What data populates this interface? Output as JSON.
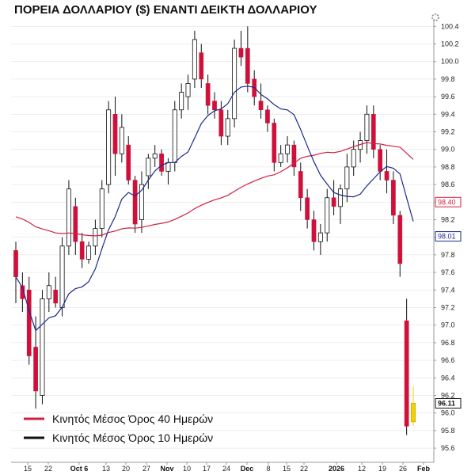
{
  "title": "ΠΟΡΕΙΑ ΔΟΛΛΑΡΙΟΥ ($) ΕΝΑΝΤΙ ΔΕΙΚΤΗ ΔΟΛΛΑΡΙΟΥ",
  "colors": {
    "down_candle": "#d0103a",
    "up_candle": "#ffffff",
    "ma40": "#d02040",
    "ma10": "#1a2a8a",
    "grid": "#dddddd",
    "highlight": "#f2d200"
  },
  "chart_data": {
    "type": "candlestick",
    "ylim": [
      95.5,
      100.5
    ],
    "y_ticks": [
      "95.6",
      "95.8",
      "96.0",
      "96.2",
      "96.4",
      "96.6",
      "96.8",
      "97.0",
      "97.2",
      "97.4",
      "97.6",
      "97.8",
      "98.0",
      "98.2",
      "98.4",
      "98.6",
      "98.8",
      "99.0",
      "99.2",
      "99.4",
      "99.6",
      "99.8",
      "100.0",
      "100.2",
      "100.4"
    ],
    "x_ticks": [
      {
        "label": "15",
        "bold": false
      },
      {
        "label": "22",
        "bold": false
      },
      {
        "label": "Oct 6",
        "bold": true
      },
      {
        "label": "13",
        "bold": false
      },
      {
        "label": "20",
        "bold": false
      },
      {
        "label": "27",
        "bold": false
      },
      {
        "label": "Nov",
        "bold": true
      },
      {
        "label": "10",
        "bold": false
      },
      {
        "label": "17",
        "bold": false
      },
      {
        "label": "24",
        "bold": false
      },
      {
        "label": "Dec",
        "bold": true
      },
      {
        "label": "8",
        "bold": false
      },
      {
        "label": "15",
        "bold": false
      },
      {
        "label": "22",
        "bold": false
      },
      {
        "label": "2026",
        "bold": true
      },
      {
        "label": "12",
        "bold": false
      },
      {
        "label": "19",
        "bold": false
      },
      {
        "label": "26",
        "bold": false
      },
      {
        "label": "Feb",
        "bold": true
      }
    ],
    "legend": [
      {
        "name": "Κινητός Μέσος Όρος 40 Ημερών",
        "color": "#d02040"
      },
      {
        "name": "Κινητός Μέσος Όρος 10 Ημερών",
        "color": "#111111"
      }
    ],
    "last_values": [
      {
        "value": "98.40",
        "color": "#d02040"
      },
      {
        "value": "98.01",
        "color": "#1a2a8a"
      },
      {
        "value": "96.11",
        "color": "#111111"
      }
    ],
    "candles": [
      {
        "o": 97.85,
        "h": 97.95,
        "l": 97.25,
        "c": 97.55
      },
      {
        "o": 97.45,
        "h": 97.6,
        "l": 97.15,
        "c": 97.3
      },
      {
        "o": 97.4,
        "h": 97.55,
        "l": 96.55,
        "c": 96.65
      },
      {
        "o": 96.75,
        "h": 97.1,
        "l": 96.05,
        "c": 96.25
      },
      {
        "o": 96.2,
        "h": 97.4,
        "l": 96.1,
        "c": 97.3
      },
      {
        "o": 97.3,
        "h": 97.6,
        "l": 97.15,
        "c": 97.45
      },
      {
        "o": 97.4,
        "h": 97.55,
        "l": 97.2,
        "c": 97.25
      },
      {
        "o": 97.2,
        "h": 98.0,
        "l": 97.1,
        "c": 97.9
      },
      {
        "o": 97.9,
        "h": 98.65,
        "l": 97.8,
        "c": 98.55
      },
      {
        "o": 98.35,
        "h": 98.45,
        "l": 97.8,
        "c": 97.95
      },
      {
        "o": 97.95,
        "h": 98.05,
        "l": 97.65,
        "c": 97.75
      },
      {
        "o": 97.75,
        "h": 97.95,
        "l": 97.7,
        "c": 97.9
      },
      {
        "o": 97.9,
        "h": 98.2,
        "l": 97.8,
        "c": 98.1
      },
      {
        "o": 98.1,
        "h": 98.65,
        "l": 98.0,
        "c": 98.55
      },
      {
        "o": 98.6,
        "h": 99.55,
        "l": 98.5,
        "c": 99.45
      },
      {
        "o": 99.4,
        "h": 99.6,
        "l": 98.7,
        "c": 98.95
      },
      {
        "o": 98.95,
        "h": 99.4,
        "l": 98.85,
        "c": 99.25
      },
      {
        "o": 99.05,
        "h": 99.15,
        "l": 98.6,
        "c": 98.65
      },
      {
        "o": 98.65,
        "h": 98.7,
        "l": 98.05,
        "c": 98.15
      },
      {
        "o": 98.2,
        "h": 98.75,
        "l": 98.05,
        "c": 98.6
      },
      {
        "o": 98.7,
        "h": 98.95,
        "l": 98.55,
        "c": 98.9
      },
      {
        "o": 98.9,
        "h": 99.05,
        "l": 98.8,
        "c": 98.95
      },
      {
        "o": 98.95,
        "h": 99.0,
        "l": 98.7,
        "c": 98.75
      },
      {
        "o": 98.75,
        "h": 98.9,
        "l": 98.6,
        "c": 98.85
      },
      {
        "o": 98.85,
        "h": 99.55,
        "l": 98.75,
        "c": 99.45
      },
      {
        "o": 99.45,
        "h": 99.75,
        "l": 99.35,
        "c": 99.65
      },
      {
        "o": 99.6,
        "h": 99.85,
        "l": 99.45,
        "c": 99.75
      },
      {
        "o": 99.8,
        "h": 100.35,
        "l": 99.7,
        "c": 100.25
      },
      {
        "o": 100.1,
        "h": 100.2,
        "l": 99.7,
        "c": 99.8
      },
      {
        "o": 99.75,
        "h": 99.85,
        "l": 99.4,
        "c": 99.5
      },
      {
        "o": 99.55,
        "h": 99.65,
        "l": 99.35,
        "c": 99.45
      },
      {
        "o": 99.45,
        "h": 99.55,
        "l": 99.05,
        "c": 99.15
      },
      {
        "o": 99.15,
        "h": 99.45,
        "l": 99.05,
        "c": 99.35
      },
      {
        "o": 99.35,
        "h": 100.25,
        "l": 99.25,
        "c": 100.15
      },
      {
        "o": 100.15,
        "h": 100.35,
        "l": 99.95,
        "c": 100.05
      },
      {
        "o": 100.15,
        "h": 100.4,
        "l": 99.65,
        "c": 99.75
      },
      {
        "o": 99.8,
        "h": 99.9,
        "l": 99.5,
        "c": 99.6
      },
      {
        "o": 99.55,
        "h": 99.75,
        "l": 99.35,
        "c": 99.45
      },
      {
        "o": 99.45,
        "h": 99.5,
        "l": 99.2,
        "c": 99.3
      },
      {
        "o": 99.3,
        "h": 99.35,
        "l": 98.75,
        "c": 98.85
      },
      {
        "o": 98.85,
        "h": 99.05,
        "l": 98.8,
        "c": 98.95
      },
      {
        "o": 98.95,
        "h": 99.15,
        "l": 98.85,
        "c": 99.05
      },
      {
        "o": 99.05,
        "h": 99.1,
        "l": 98.7,
        "c": 98.8
      },
      {
        "o": 98.75,
        "h": 98.85,
        "l": 98.3,
        "c": 98.45
      },
      {
        "o": 98.45,
        "h": 98.55,
        "l": 98.1,
        "c": 98.2
      },
      {
        "o": 98.2,
        "h": 98.3,
        "l": 97.85,
        "c": 97.95
      },
      {
        "o": 97.95,
        "h": 98.15,
        "l": 97.8,
        "c": 98.05
      },
      {
        "o": 98.05,
        "h": 98.55,
        "l": 97.95,
        "c": 98.45
      },
      {
        "o": 98.45,
        "h": 98.65,
        "l": 98.25,
        "c": 98.35
      },
      {
        "o": 98.35,
        "h": 98.6,
        "l": 98.15,
        "c": 98.55
      },
      {
        "o": 98.55,
        "h": 98.95,
        "l": 98.4,
        "c": 98.8
      },
      {
        "o": 98.8,
        "h": 99.1,
        "l": 98.7,
        "c": 99.0
      },
      {
        "o": 99.0,
        "h": 99.2,
        "l": 98.85,
        "c": 99.1
      },
      {
        "o": 99.1,
        "h": 99.5,
        "l": 98.95,
        "c": 99.4
      },
      {
        "o": 99.4,
        "h": 99.5,
        "l": 98.9,
        "c": 99.0
      },
      {
        "o": 99.0,
        "h": 99.05,
        "l": 98.65,
        "c": 98.75
      },
      {
        "o": 98.75,
        "h": 99.0,
        "l": 98.5,
        "c": 98.65
      },
      {
        "o": 98.65,
        "h": 98.75,
        "l": 98.15,
        "c": 98.25
      },
      {
        "o": 98.25,
        "h": 98.3,
        "l": 97.55,
        "c": 97.7
      },
      {
        "o": 97.05,
        "h": 97.3,
        "l": 95.75,
        "c": 95.85
      },
      {
        "o": 95.9,
        "h": 96.3,
        "l": 95.85,
        "c": 96.11
      }
    ]
  }
}
